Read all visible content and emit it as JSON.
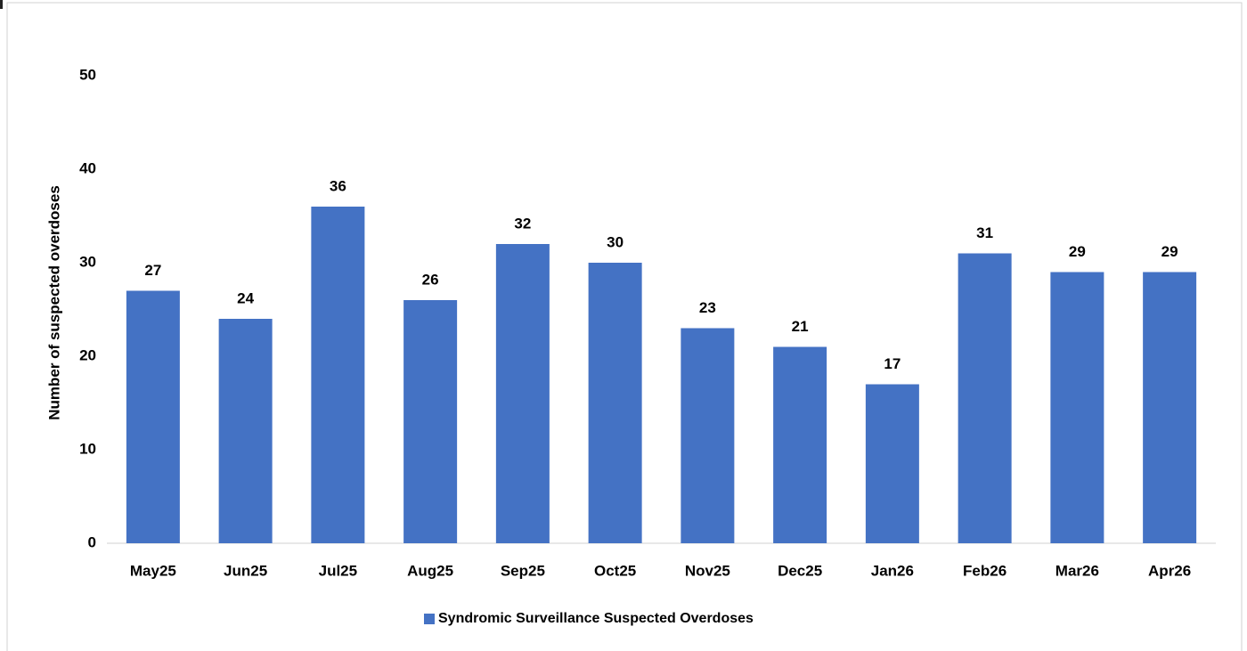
{
  "chart_data": {
    "type": "bar",
    "y_label": "Number of suspected overdoses",
    "categories": [
      "May25",
      "Jun25",
      "Jul25",
      "Aug25",
      "Sep25",
      "Oct25",
      "Nov25",
      "Dec25",
      "Jan26",
      "Feb26",
      "Mar26",
      "Apr26"
    ],
    "series": [
      {
        "name": "Syndromic Surveillance Suspected Overdoses",
        "color": "#4472c4",
        "values": [
          27,
          24,
          36,
          26,
          32,
          30,
          23,
          21,
          17,
          31,
          29,
          29
        ]
      }
    ],
    "ylim": [
      0,
      50
    ],
    "yticks": [
      0,
      10,
      20,
      30,
      40,
      50
    ],
    "grid": false,
    "legend": "bottom"
  }
}
